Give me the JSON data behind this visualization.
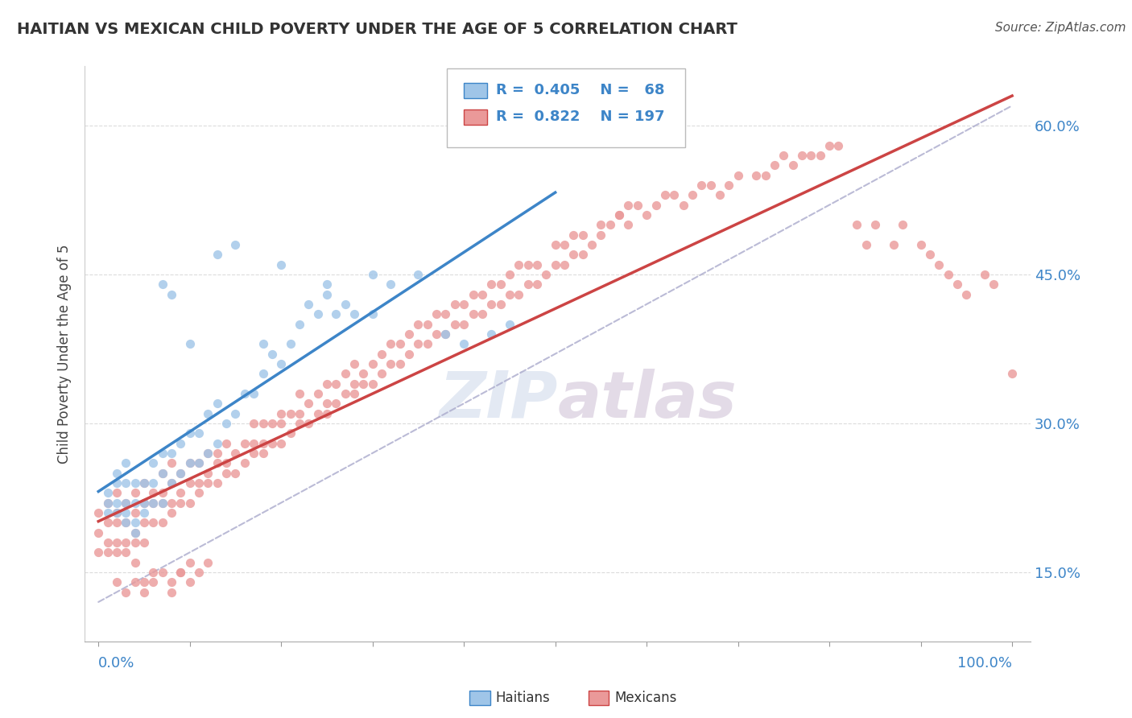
{
  "title": "HAITIAN VS MEXICAN CHILD POVERTY UNDER THE AGE OF 5 CORRELATION CHART",
  "source": "Source: ZipAtlas.com",
  "ylabel": "Child Poverty Under the Age of 5",
  "ytick_labels": [
    "15.0%",
    "30.0%",
    "45.0%",
    "60.0%"
  ],
  "ytick_values": [
    0.15,
    0.3,
    0.45,
    0.6
  ],
  "haitian_color": "#9fc5e8",
  "mexican_color": "#ea9999",
  "haitian_line_color": "#3d85c8",
  "mexican_line_color": "#cc4444",
  "dashed_line_color": "#aaaacc",
  "background_color": "#ffffff",
  "grid_color": "#cccccc",
  "title_color": "#333333",
  "axis_label_color": "#3d85c8",
  "watermark": "ZIPatlas",
  "haitian_x": [
    0.01,
    0.01,
    0.01,
    0.02,
    0.02,
    0.02,
    0.02,
    0.03,
    0.03,
    0.03,
    0.03,
    0.03,
    0.04,
    0.04,
    0.04,
    0.04,
    0.05,
    0.05,
    0.05,
    0.06,
    0.06,
    0.06,
    0.07,
    0.07,
    0.07,
    0.08,
    0.08,
    0.09,
    0.09,
    0.1,
    0.1,
    0.11,
    0.11,
    0.12,
    0.12,
    0.13,
    0.13,
    0.14,
    0.15,
    0.16,
    0.17,
    0.18,
    0.18,
    0.19,
    0.2,
    0.21,
    0.22,
    0.23,
    0.24,
    0.25,
    0.26,
    0.27,
    0.28,
    0.3,
    0.32,
    0.35,
    0.38,
    0.4,
    0.43,
    0.45,
    0.13,
    0.15,
    0.2,
    0.25,
    0.1,
    0.07,
    0.08,
    0.3
  ],
  "haitian_y": [
    0.21,
    0.22,
    0.23,
    0.21,
    0.22,
    0.24,
    0.25,
    0.2,
    0.21,
    0.22,
    0.24,
    0.26,
    0.19,
    0.2,
    0.22,
    0.24,
    0.21,
    0.22,
    0.24,
    0.22,
    0.24,
    0.26,
    0.22,
    0.25,
    0.27,
    0.24,
    0.27,
    0.25,
    0.28,
    0.26,
    0.29,
    0.26,
    0.29,
    0.27,
    0.31,
    0.28,
    0.32,
    0.3,
    0.31,
    0.33,
    0.33,
    0.35,
    0.38,
    0.37,
    0.36,
    0.38,
    0.4,
    0.42,
    0.41,
    0.43,
    0.41,
    0.42,
    0.41,
    0.45,
    0.44,
    0.45,
    0.39,
    0.38,
    0.39,
    0.4,
    0.47,
    0.48,
    0.46,
    0.44,
    0.38,
    0.44,
    0.43,
    0.41
  ],
  "mexican_x": [
    0.0,
    0.0,
    0.0,
    0.01,
    0.01,
    0.01,
    0.01,
    0.02,
    0.02,
    0.02,
    0.02,
    0.02,
    0.03,
    0.03,
    0.03,
    0.03,
    0.04,
    0.04,
    0.04,
    0.04,
    0.05,
    0.05,
    0.05,
    0.05,
    0.06,
    0.06,
    0.06,
    0.07,
    0.07,
    0.07,
    0.07,
    0.08,
    0.08,
    0.08,
    0.08,
    0.09,
    0.09,
    0.09,
    0.1,
    0.1,
    0.1,
    0.11,
    0.11,
    0.11,
    0.12,
    0.12,
    0.12,
    0.13,
    0.13,
    0.13,
    0.14,
    0.14,
    0.14,
    0.15,
    0.15,
    0.16,
    0.16,
    0.17,
    0.17,
    0.17,
    0.18,
    0.18,
    0.18,
    0.19,
    0.19,
    0.2,
    0.2,
    0.2,
    0.21,
    0.21,
    0.22,
    0.22,
    0.22,
    0.23,
    0.23,
    0.24,
    0.24,
    0.25,
    0.25,
    0.25,
    0.26,
    0.26,
    0.27,
    0.27,
    0.28,
    0.28,
    0.28,
    0.29,
    0.29,
    0.3,
    0.3,
    0.31,
    0.31,
    0.32,
    0.32,
    0.33,
    0.33,
    0.34,
    0.34,
    0.35,
    0.35,
    0.36,
    0.36,
    0.37,
    0.37,
    0.38,
    0.38,
    0.39,
    0.39,
    0.4,
    0.4,
    0.41,
    0.41,
    0.42,
    0.42,
    0.43,
    0.43,
    0.44,
    0.44,
    0.45,
    0.45,
    0.46,
    0.46,
    0.47,
    0.47,
    0.48,
    0.48,
    0.49,
    0.5,
    0.5,
    0.51,
    0.51,
    0.52,
    0.52,
    0.53,
    0.53,
    0.54,
    0.55,
    0.55,
    0.56,
    0.57,
    0.57,
    0.58,
    0.58,
    0.59,
    0.6,
    0.61,
    0.62,
    0.63,
    0.64,
    0.65,
    0.66,
    0.67,
    0.68,
    0.69,
    0.7,
    0.72,
    0.73,
    0.74,
    0.75,
    0.76,
    0.77,
    0.78,
    0.79,
    0.8,
    0.81,
    0.83,
    0.84,
    0.85,
    0.87,
    0.88,
    0.9,
    0.91,
    0.92,
    0.93,
    0.94,
    0.95,
    0.97,
    0.98,
    1.0,
    0.02,
    0.03,
    0.04,
    0.05,
    0.06,
    0.04,
    0.05,
    0.06,
    0.07,
    0.08,
    0.09,
    0.1,
    0.11,
    0.12,
    0.08,
    0.09,
    0.1
  ],
  "mexican_y": [
    0.17,
    0.19,
    0.21,
    0.17,
    0.18,
    0.2,
    0.22,
    0.17,
    0.18,
    0.2,
    0.21,
    0.23,
    0.17,
    0.18,
    0.2,
    0.22,
    0.18,
    0.19,
    0.21,
    0.23,
    0.18,
    0.2,
    0.22,
    0.24,
    0.2,
    0.22,
    0.23,
    0.2,
    0.22,
    0.23,
    0.25,
    0.21,
    0.22,
    0.24,
    0.26,
    0.22,
    0.23,
    0.25,
    0.22,
    0.24,
    0.26,
    0.23,
    0.24,
    0.26,
    0.24,
    0.25,
    0.27,
    0.24,
    0.26,
    0.27,
    0.25,
    0.26,
    0.28,
    0.25,
    0.27,
    0.26,
    0.28,
    0.27,
    0.28,
    0.3,
    0.27,
    0.28,
    0.3,
    0.28,
    0.3,
    0.28,
    0.3,
    0.31,
    0.29,
    0.31,
    0.3,
    0.31,
    0.33,
    0.3,
    0.32,
    0.31,
    0.33,
    0.31,
    0.32,
    0.34,
    0.32,
    0.34,
    0.33,
    0.35,
    0.33,
    0.34,
    0.36,
    0.34,
    0.35,
    0.34,
    0.36,
    0.35,
    0.37,
    0.36,
    0.38,
    0.36,
    0.38,
    0.37,
    0.39,
    0.38,
    0.4,
    0.38,
    0.4,
    0.39,
    0.41,
    0.39,
    0.41,
    0.4,
    0.42,
    0.4,
    0.42,
    0.41,
    0.43,
    0.41,
    0.43,
    0.42,
    0.44,
    0.42,
    0.44,
    0.43,
    0.45,
    0.43,
    0.46,
    0.44,
    0.46,
    0.44,
    0.46,
    0.45,
    0.46,
    0.48,
    0.46,
    0.48,
    0.47,
    0.49,
    0.47,
    0.49,
    0.48,
    0.49,
    0.5,
    0.5,
    0.51,
    0.51,
    0.5,
    0.52,
    0.52,
    0.51,
    0.52,
    0.53,
    0.53,
    0.52,
    0.53,
    0.54,
    0.54,
    0.53,
    0.54,
    0.55,
    0.55,
    0.55,
    0.56,
    0.57,
    0.56,
    0.57,
    0.57,
    0.57,
    0.58,
    0.58,
    0.5,
    0.48,
    0.5,
    0.48,
    0.5,
    0.48,
    0.47,
    0.46,
    0.45,
    0.44,
    0.43,
    0.45,
    0.44,
    0.35,
    0.14,
    0.13,
    0.14,
    0.14,
    0.15,
    0.16,
    0.13,
    0.14,
    0.15,
    0.13,
    0.15,
    0.14,
    0.15,
    0.16,
    0.14,
    0.15,
    0.16
  ]
}
